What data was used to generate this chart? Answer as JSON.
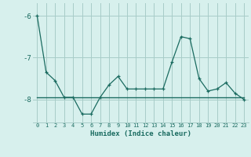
{
  "xlabel": "Humidex (Indice chaleur)",
  "background_color": "#d7f0ed",
  "grid_color": "#a8ccc8",
  "line_color": "#1a6b60",
  "x_values": [
    0,
    1,
    2,
    3,
    4,
    5,
    6,
    7,
    8,
    9,
    10,
    11,
    12,
    13,
    14,
    15,
    16,
    17,
    18,
    19,
    20,
    21,
    22,
    23
  ],
  "y_main": [
    -6.0,
    -7.35,
    -7.55,
    -7.95,
    -7.95,
    -8.35,
    -8.35,
    -7.95,
    -7.65,
    -7.45,
    -7.75,
    -7.75,
    -7.75,
    -7.75,
    -7.75,
    -7.1,
    -6.5,
    -6.55,
    -7.5,
    -7.8,
    -7.75,
    -7.6,
    -7.85,
    -8.0
  ],
  "y_mean": [
    -7.95,
    -7.95,
    -7.95,
    -7.95,
    -7.95,
    -7.95,
    -7.95,
    -7.95,
    -7.95,
    -7.95,
    -7.95,
    -7.95,
    -7.95,
    -7.95,
    -7.95,
    -7.95,
    -7.95,
    -7.95,
    -7.95,
    -7.95,
    -7.95,
    -7.95,
    -7.95,
    -7.95
  ],
  "yticks": [
    -8,
    -7,
    -6
  ],
  "ylim": [
    -8.55,
    -5.7
  ],
  "xlim": [
    -0.5,
    23.5
  ],
  "xtick_labels": [
    "0",
    "1",
    "2",
    "3",
    "4",
    "5",
    "6",
    "7",
    "8",
    "9",
    "10",
    "11",
    "12",
    "13",
    "14",
    "15",
    "16",
    "17",
    "18",
    "19",
    "20",
    "21",
    "22",
    "23"
  ]
}
